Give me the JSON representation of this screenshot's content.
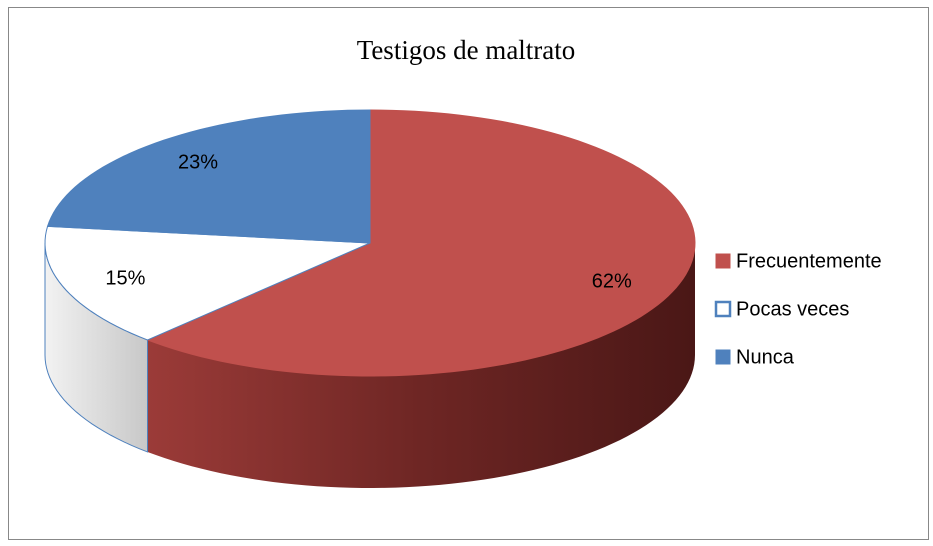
{
  "chart_data": {
    "type": "pie",
    "title": "Testigos de maltrato",
    "categories": [
      "Frecuentemente",
      "Pocas veces",
      "Nunca"
    ],
    "values": [
      62,
      15,
      23
    ],
    "value_labels": [
      "62%",
      "15%",
      "23%"
    ],
    "colors": [
      "#c0504d",
      "#ffffff",
      "#4f81bd"
    ],
    "legend": "right"
  }
}
